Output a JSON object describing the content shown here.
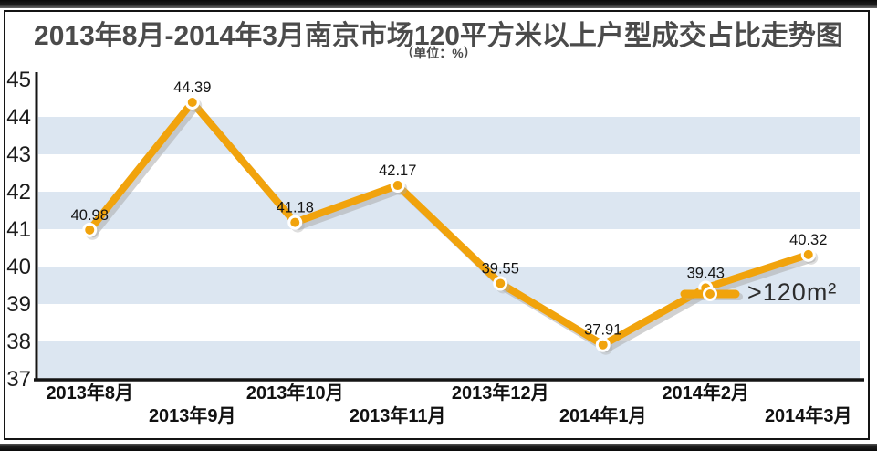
{
  "page": {
    "title": "2013年8月-2014年3月南京市场120平方米以上户型成交占比走势图",
    "subtitle": "（单位：%）"
  },
  "legend": {
    "label": ">120m²"
  },
  "chart_data": {
    "type": "line",
    "title": "2013年8月-2014年3月南京市场120平方米以上户型成交占比走势图",
    "subtitle": "（单位：%）",
    "unit": "%",
    "categories": [
      "2013年8月",
      "2013年9月",
      "2013年10月",
      "2013年11月",
      "2013年12月",
      "2014年1月",
      "2014年2月",
      "2014年3月"
    ],
    "series": [
      {
        "name": ">120m²",
        "values": [
          40.98,
          44.39,
          41.18,
          42.17,
          39.55,
          37.91,
          39.43,
          40.32
        ]
      }
    ],
    "point_labels": [
      "40.98",
      "44.39",
      "41.18",
      "42.17",
      "39.55",
      "37.91",
      "39.43",
      "40.32"
    ],
    "xlabel": "",
    "ylabel": "",
    "ylim": [
      37,
      45
    ],
    "yticks": [
      45,
      44,
      43,
      42,
      41,
      40,
      39,
      38,
      37
    ],
    "xtick_layout": "staggered-two-rows",
    "grid": "alternating-horizontal-bands",
    "shaded_bands": [
      [
        43,
        44
      ],
      [
        41,
        42
      ],
      [
        39,
        40
      ],
      [
        37,
        38
      ]
    ],
    "legend_position": "inside-right, beside 2014年2月 point",
    "colors": {
      "line": "#F1A30C",
      "marker": "#F1A30C",
      "marker_ring": "#FFFFFF",
      "band": "#DCE6F1",
      "shadow": "#ACACAC",
      "axis": "#141414",
      "title": "#4B4B4B",
      "label": "#151515"
    }
  }
}
